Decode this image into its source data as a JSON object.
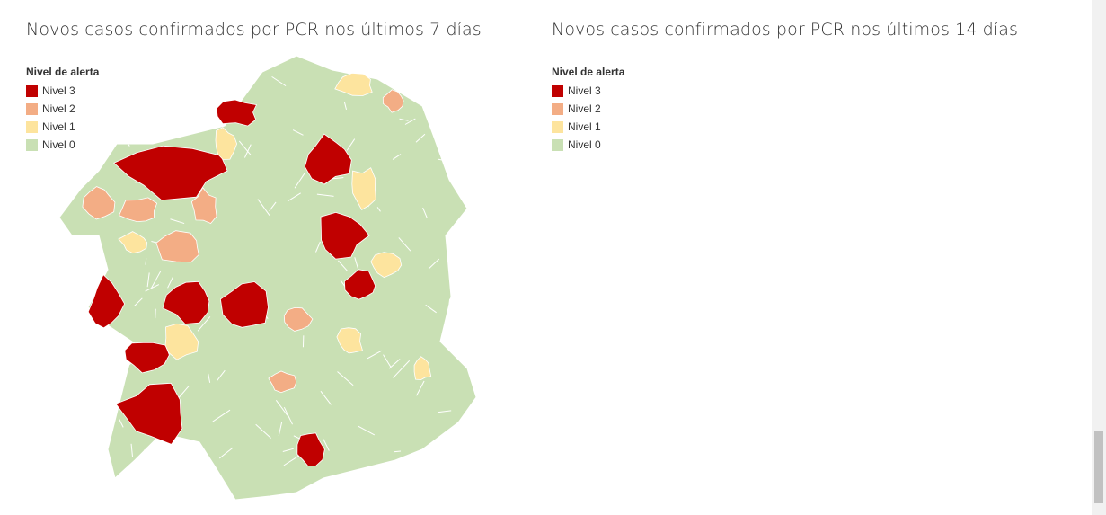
{
  "maps": [
    {
      "title": "Novos casos confirmados por PCR nos últimos 7 días",
      "legend": {
        "title": "Nivel de alerta",
        "items": [
          {
            "label": "Nivel 3",
            "color": "#c00000"
          },
          {
            "label": "Nivel 2",
            "color": "#f3ad85"
          },
          {
            "label": "Nivel 1",
            "color": "#fde49e"
          },
          {
            "label": "Nivel 0",
            "color": "#c9e0b4"
          }
        ]
      }
    },
    {
      "title": "Novos casos confirmados por PCR nos últimos 14 días",
      "legend": {
        "title": "Nivel de alerta",
        "items": [
          {
            "label": "Nivel 3",
            "color": "#c00000"
          },
          {
            "label": "Nivel 2",
            "color": "#f3ad85"
          },
          {
            "label": "Nivel 1",
            "color": "#fde49e"
          },
          {
            "label": "Nivel 0",
            "color": "#c9e0b4"
          }
        ]
      }
    }
  ]
}
